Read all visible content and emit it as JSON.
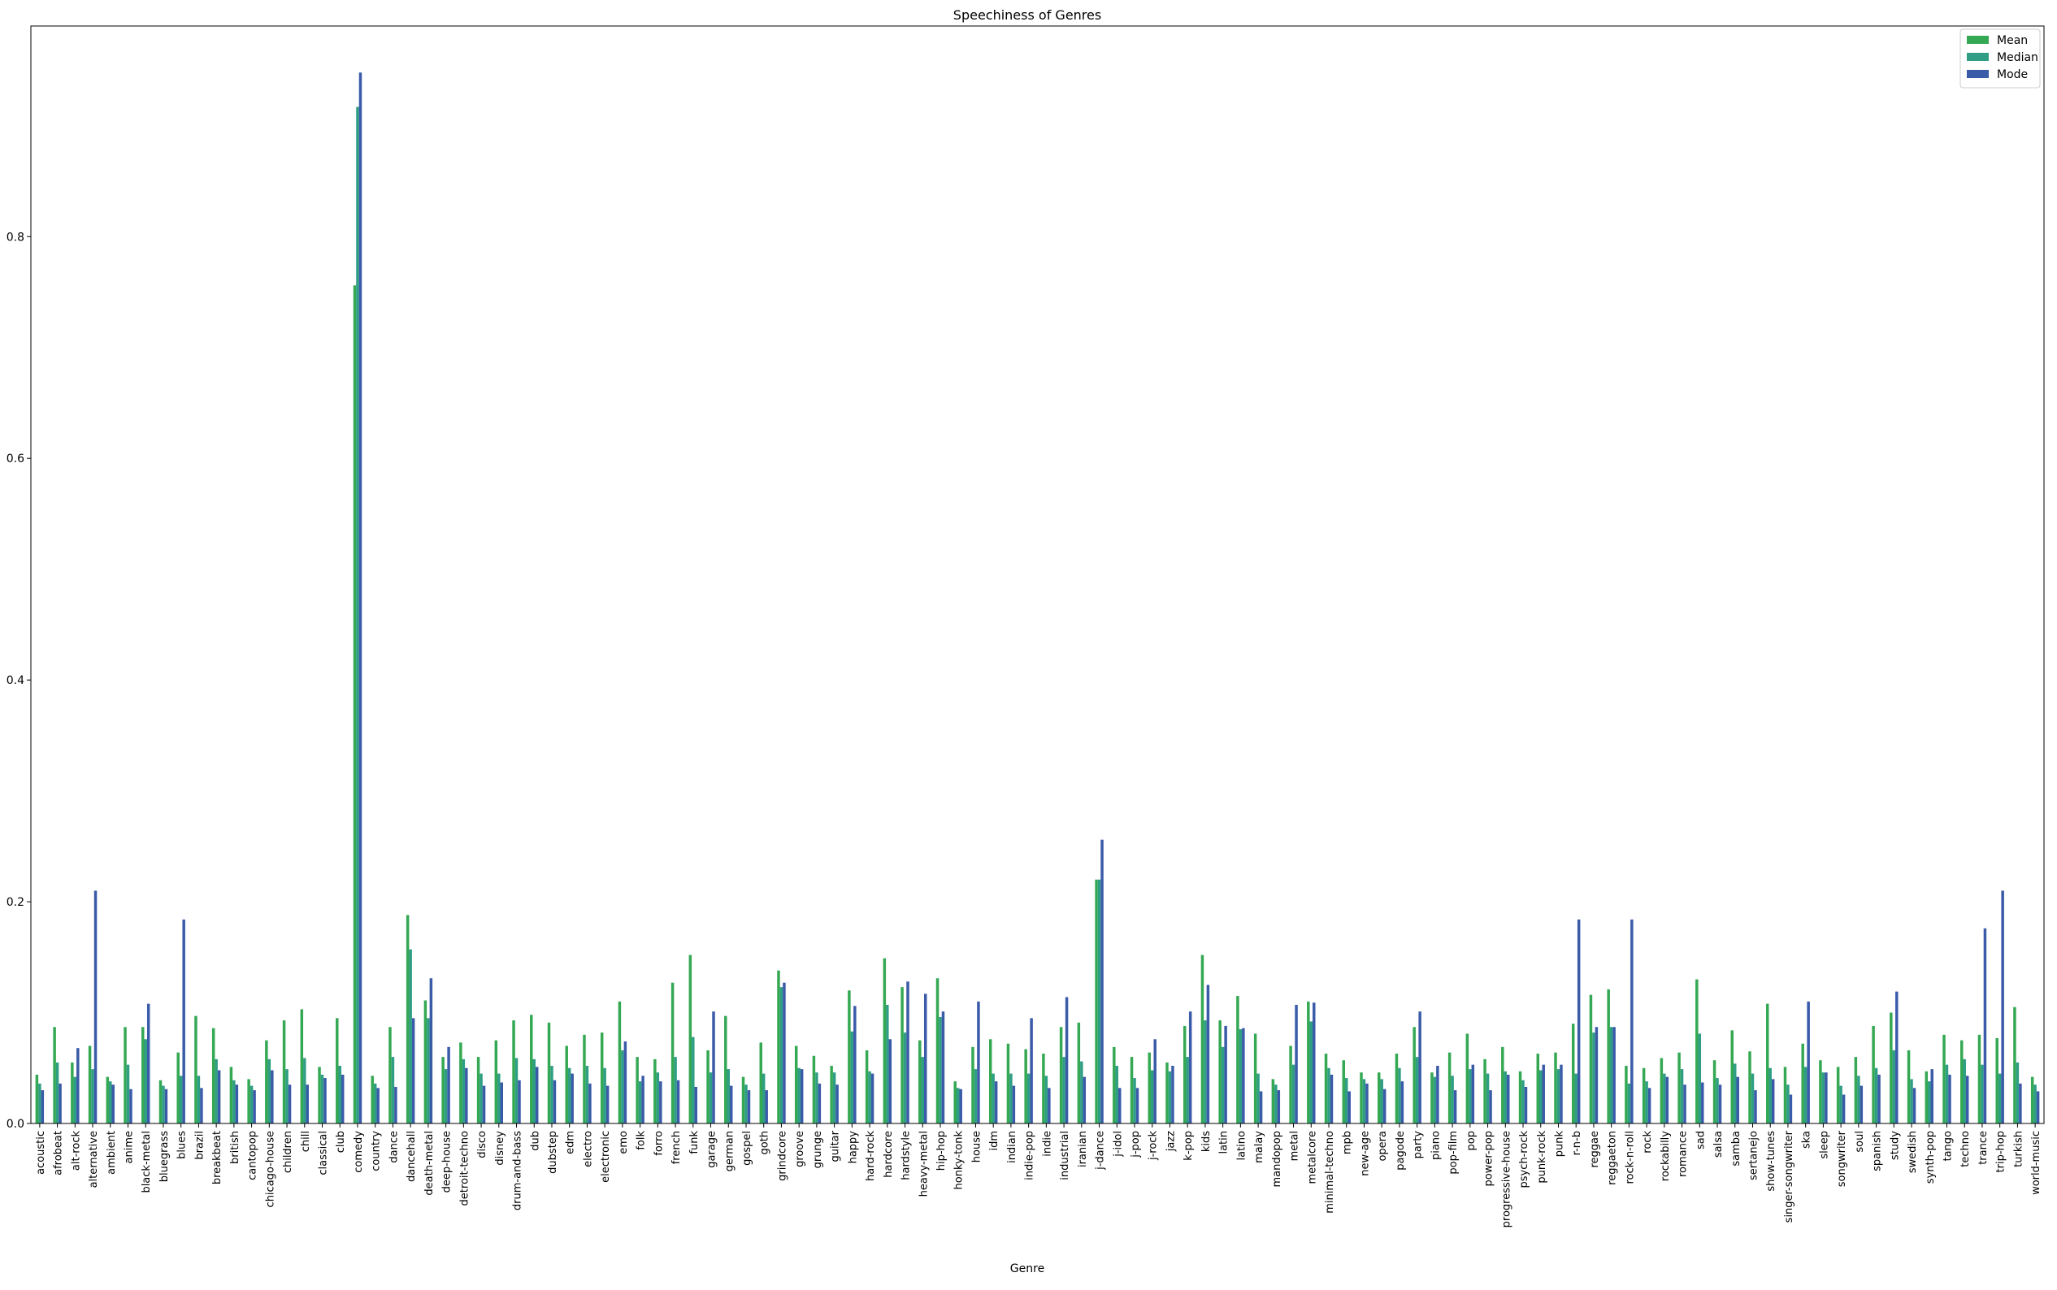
{
  "chart_data": {
    "type": "bar",
    "title": "Speechiness of Genres",
    "xlabel": "Genre",
    "ylabel": "",
    "ylim": [
      0,
      0.99
    ],
    "yticks": [
      0.0,
      0.2,
      0.4,
      0.6,
      0.8
    ],
    "ytick_labels": [
      "0.0",
      "0.2",
      "0.4",
      "0.6",
      "0.8"
    ],
    "grid": false,
    "legend_position": "top-right",
    "categories": [
      "acoustic",
      "afrobeat",
      "alt-rock",
      "alternative",
      "ambient",
      "anime",
      "black-metal",
      "bluegrass",
      "blues",
      "brazil",
      "breakbeat",
      "british",
      "cantopop",
      "chicago-house",
      "children",
      "chill",
      "classical",
      "club",
      "comedy",
      "country",
      "dance",
      "dancehall",
      "death-metal",
      "deep-house",
      "detroit-techno",
      "disco",
      "disney",
      "drum-and-bass",
      "dub",
      "dubstep",
      "edm",
      "electro",
      "electronic",
      "emo",
      "folk",
      "forro",
      "french",
      "funk",
      "garage",
      "german",
      "gospel",
      "goth",
      "grindcore",
      "groove",
      "grunge",
      "guitar",
      "happy",
      "hard-rock",
      "hardcore",
      "hardstyle",
      "heavy-metal",
      "hip-hop",
      "honky-tonk",
      "house",
      "idm",
      "indian",
      "indie-pop",
      "indie",
      "industrial",
      "iranian",
      "j-dance",
      "j-idol",
      "j-pop",
      "j-rock",
      "jazz",
      "k-pop",
      "kids",
      "latin",
      "latino",
      "malay",
      "mandopop",
      "metal",
      "metalcore",
      "minimal-techno",
      "mpb",
      "new-age",
      "opera",
      "pagode",
      "party",
      "piano",
      "pop-film",
      "pop",
      "power-pop",
      "progressive-house",
      "psych-rock",
      "punk-rock",
      "punk",
      "r-n-b",
      "reggae",
      "reggaeton",
      "rock-n-roll",
      "rock",
      "rockabilly",
      "romance",
      "sad",
      "salsa",
      "samba",
      "sertanejo",
      "show-tunes",
      "singer-songwriter",
      "ska",
      "sleep",
      "songwriter",
      "soul",
      "spanish",
      "study",
      "swedish",
      "synth-pop",
      "tango",
      "techno",
      "trance",
      "trip-hop",
      "turkish",
      "world-music"
    ],
    "series": [
      {
        "name": "Mean",
        "color": "#34a853",
        "values": [
          0.044,
          0.087,
          0.055,
          0.07,
          0.042,
          0.087,
          0.087,
          0.039,
          0.064,
          0.097,
          0.086,
          0.051,
          0.04,
          0.075,
          0.093,
          0.103,
          0.051,
          0.095,
          0.756,
          0.043,
          0.087,
          0.188,
          0.111,
          0.06,
          0.073,
          0.06,
          0.075,
          0.093,
          0.098,
          0.091,
          0.07,
          0.08,
          0.082,
          0.11,
          0.06,
          0.058,
          0.127,
          0.152,
          0.066,
          0.097,
          0.042,
          0.073,
          0.138,
          0.07,
          0.061,
          0.052,
          0.12,
          0.066,
          0.149,
          0.123,
          0.075,
          0.131,
          0.038,
          0.069,
          0.076,
          0.072,
          0.067,
          0.063,
          0.087,
          0.091,
          0.22,
          0.069,
          0.06,
          0.064,
          0.055,
          0.088,
          0.152,
          0.093,
          0.115,
          0.081,
          0.04,
          0.07,
          0.11,
          0.063,
          0.057,
          0.046,
          0.046,
          0.063,
          0.087,
          0.046,
          0.064,
          0.081,
          0.058,
          0.069,
          0.047,
          0.063,
          0.064,
          0.09,
          0.116,
          0.121,
          0.052,
          0.05,
          0.059,
          0.064,
          0.13,
          0.057,
          0.084,
          0.065,
          0.108,
          0.051,
          0.072,
          0.057,
          0.051,
          0.06,
          0.088,
          0.1,
          0.066,
          0.047,
          0.08,
          0.075,
          0.08,
          0.077,
          0.105,
          0.042
        ]
      },
      {
        "name": "Median",
        "color": "#2f9e84",
        "values": [
          0.036,
          0.055,
          0.042,
          0.049,
          0.038,
          0.053,
          0.076,
          0.034,
          0.043,
          0.043,
          0.058,
          0.039,
          0.034,
          0.058,
          0.049,
          0.059,
          0.044,
          0.052,
          0.917,
          0.036,
          0.06,
          0.157,
          0.095,
          0.049,
          0.058,
          0.045,
          0.045,
          0.059,
          0.058,
          0.052,
          0.05,
          0.052,
          0.05,
          0.066,
          0.038,
          0.046,
          0.06,
          0.078,
          0.046,
          0.049,
          0.035,
          0.045,
          0.123,
          0.05,
          0.046,
          0.046,
          0.083,
          0.047,
          0.107,
          0.082,
          0.06,
          0.096,
          0.032,
          0.049,
          0.045,
          0.045,
          0.045,
          0.043,
          0.06,
          0.056,
          0.22,
          0.052,
          0.041,
          0.048,
          0.047,
          0.06,
          0.093,
          0.069,
          0.085,
          0.045,
          0.035,
          0.053,
          0.092,
          0.05,
          0.041,
          0.04,
          0.04,
          0.05,
          0.06,
          0.042,
          0.043,
          0.049,
          0.045,
          0.047,
          0.039,
          0.048,
          0.049,
          0.045,
          0.082,
          0.087,
          0.036,
          0.038,
          0.045,
          0.049,
          0.081,
          0.041,
          0.054,
          0.045,
          0.05,
          0.035,
          0.051,
          0.046,
          0.034,
          0.043,
          0.05,
          0.066,
          0.04,
          0.038,
          0.053,
          0.058,
          0.053,
          0.045,
          0.055,
          0.035
        ]
      },
      {
        "name": "Mode",
        "color": "#3a5ba8",
        "values": [
          0.03,
          0.036,
          0.068,
          0.21,
          0.035,
          0.031,
          0.108,
          0.031,
          0.184,
          0.032,
          0.048,
          0.035,
          0.03,
          0.048,
          0.035,
          0.035,
          0.041,
          0.044,
          0.948,
          0.032,
          0.033,
          0.095,
          0.131,
          0.069,
          0.05,
          0.034,
          0.037,
          0.039,
          0.051,
          0.039,
          0.045,
          0.036,
          0.034,
          0.074,
          0.043,
          0.038,
          0.039,
          0.033,
          0.101,
          0.034,
          0.03,
          0.03,
          0.127,
          0.049,
          0.036,
          0.035,
          0.106,
          0.045,
          0.076,
          0.128,
          0.117,
          0.101,
          0.031,
          0.11,
          0.038,
          0.034,
          0.095,
          0.032,
          0.114,
          0.042,
          0.256,
          0.032,
          0.032,
          0.076,
          0.052,
          0.101,
          0.125,
          0.088,
          0.086,
          0.029,
          0.03,
          0.107,
          0.109,
          0.044,
          0.029,
          0.036,
          0.031,
          0.038,
          0.101,
          0.052,
          0.03,
          0.053,
          0.03,
          0.044,
          0.033,
          0.053,
          0.053,
          0.184,
          0.087,
          0.087,
          0.184,
          0.032,
          0.042,
          0.035,
          0.037,
          0.035,
          0.042,
          0.03,
          0.04,
          0.026,
          0.11,
          0.046,
          0.026,
          0.034,
          0.044,
          0.119,
          0.032,
          0.049,
          0.044,
          0.043,
          0.176,
          0.21,
          0.036,
          0.029
        ]
      }
    ]
  }
}
